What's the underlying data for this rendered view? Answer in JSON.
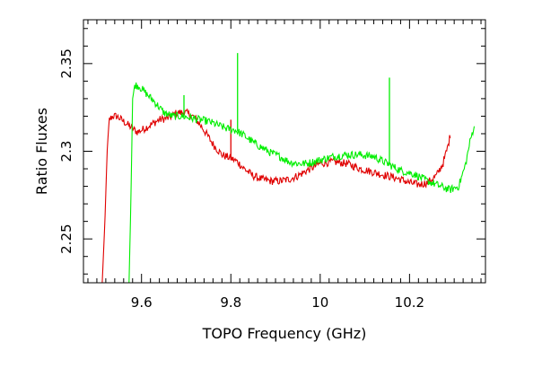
{
  "chart_data": {
    "type": "line",
    "title": "",
    "xlabel": "TOPO Frequency (GHz)",
    "ylabel": "Ratio Fluxes",
    "xlim": [
      9.47,
      10.37
    ],
    "ylim": [
      2.225,
      2.375
    ],
    "x_ticks": [
      9.6,
      9.8,
      10.0,
      10.2
    ],
    "x_tick_labels": [
      "9.6",
      "9.8",
      "10",
      "10.2"
    ],
    "y_ticks": [
      2.25,
      2.3,
      2.35
    ],
    "y_tick_labels": [
      "2.25",
      "2.3",
      "2.35"
    ],
    "grid": false,
    "series": [
      {
        "name": "red",
        "color": "#e00000",
        "x": [
          9.512,
          9.518,
          9.523,
          9.528,
          9.535,
          9.545,
          9.56,
          9.575,
          9.59,
          9.6,
          9.62,
          9.64,
          9.66,
          9.68,
          9.7,
          9.72,
          9.74,
          9.76,
          9.78,
          9.8,
          9.815,
          9.83,
          9.85,
          9.87,
          9.89,
          9.91,
          9.93,
          9.95,
          9.97,
          10.0,
          10.03,
          10.06,
          10.09,
          10.12,
          10.15,
          10.18,
          10.2,
          10.22,
          10.24,
          10.26,
          10.275,
          10.285,
          10.292
        ],
        "y": [
          2.225,
          2.26,
          2.3,
          2.318,
          2.32,
          2.32,
          2.317,
          2.314,
          2.311,
          2.312,
          2.315,
          2.318,
          2.319,
          2.322,
          2.322,
          2.319,
          2.312,
          2.304,
          2.298,
          2.296,
          2.294,
          2.29,
          2.286,
          2.284,
          2.283,
          2.283,
          2.284,
          2.286,
          2.289,
          2.293,
          2.294,
          2.293,
          2.29,
          2.288,
          2.286,
          2.284,
          2.282,
          2.281,
          2.282,
          2.286,
          2.293,
          2.302,
          2.31
        ]
      },
      {
        "name": "green",
        "color": "#00ee00",
        "x": [
          9.572,
          9.576,
          9.58,
          9.585,
          9.595,
          9.61,
          9.63,
          9.65,
          9.67,
          9.69,
          9.71,
          9.73,
          9.75,
          9.77,
          9.79,
          9.81,
          9.83,
          9.85,
          9.87,
          9.89,
          9.91,
          9.93,
          9.95,
          9.97,
          10.0,
          10.03,
          10.06,
          10.09,
          10.12,
          10.15,
          10.18,
          10.21,
          10.24,
          10.27,
          10.29,
          10.31,
          10.325,
          10.335,
          10.345
        ],
        "y": [
          2.225,
          2.27,
          2.33,
          2.338,
          2.337,
          2.333,
          2.328,
          2.322,
          2.32,
          2.32,
          2.319,
          2.318,
          2.317,
          2.315,
          2.313,
          2.312,
          2.309,
          2.305,
          2.302,
          2.299,
          2.297,
          2.294,
          2.293,
          2.293,
          2.295,
          2.297,
          2.298,
          2.298,
          2.297,
          2.293,
          2.289,
          2.287,
          2.283,
          2.28,
          2.278,
          2.28,
          2.292,
          2.305,
          2.315
        ]
      }
    ],
    "spikes": [
      {
        "series": "green",
        "x": 9.695,
        "y_top": 2.332
      },
      {
        "series": "green",
        "x": 9.815,
        "y_top": 2.356
      },
      {
        "series": "green",
        "x": 10.155,
        "y_top": 2.342
      },
      {
        "series": "red",
        "x": 9.8,
        "y_top": 2.318
      }
    ]
  }
}
